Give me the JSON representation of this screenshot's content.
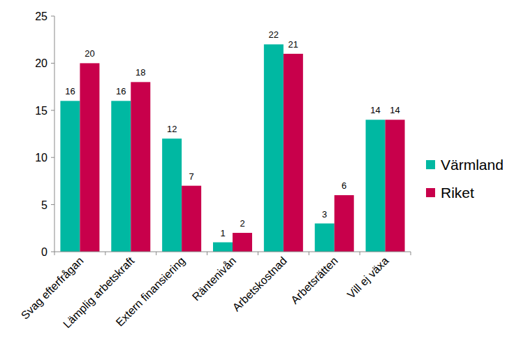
{
  "chart_data": {
    "type": "bar",
    "categories": [
      "Svag efterfrågan",
      "Lämplig arbetskraft",
      "Extern finansiering",
      "Räntenivån",
      "Arbetskostnad",
      "Arbetsrätten",
      "Vill ej växa"
    ],
    "series": [
      {
        "name": "Värmland",
        "color": "#00b8a2",
        "values": [
          16,
          16,
          12,
          1,
          22,
          3,
          14
        ]
      },
      {
        "name": "Riket",
        "color": "#c8004b",
        "values": [
          20,
          18,
          7,
          2,
          21,
          6,
          14
        ]
      }
    ],
    "ylim": [
      0,
      25
    ],
    "yticks": [
      0,
      5,
      10,
      15,
      20,
      25
    ],
    "grid": false,
    "legend": "right",
    "data_labels": true
  }
}
